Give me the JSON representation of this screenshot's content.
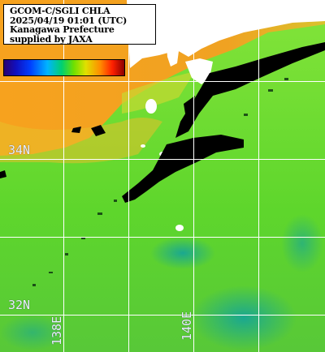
{
  "info": {
    "lines": [
      "GCOM-C/SGLI CHLA",
      "2025/04/19 01:01 (UTC)",
      "Kanagawa Prefecture",
      "supplied by JAXA"
    ]
  },
  "grid": {
    "lat_labels": [
      "34N",
      "32N"
    ],
    "lon_labels": [
      "138E",
      "140E"
    ]
  },
  "colors": {
    "ocean_green": "#5fdc28",
    "ocean_teal": "#24b48c",
    "coastal_orange": "#f49a1c",
    "land_white": "#ffffff",
    "no_data_black": "#000000",
    "grid_line": "#ffffff"
  }
}
